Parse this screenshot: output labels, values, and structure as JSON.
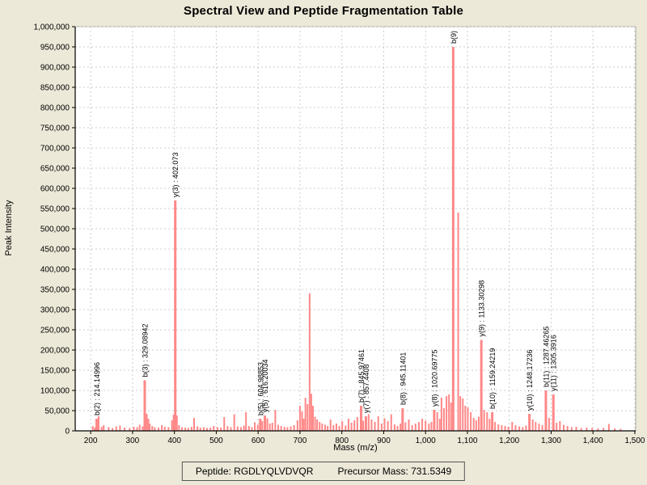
{
  "footer": {
    "peptide_label": "Peptide: RGDLYQLVDVQR",
    "precursor_label": "Precursor Mass: 731.5349"
  },
  "chart_data": {
    "type": "bar",
    "title": "Spectral View and Peptide Fragmentation Table",
    "xlabel": "Mass (m/z)",
    "ylabel": "Peak Intensity",
    "xlim": [
      163,
      1502
    ],
    "ylim": [
      0,
      1000000
    ],
    "x_ticks": [
      200,
      300,
      400,
      500,
      600,
      700,
      800,
      900,
      1000,
      1100,
      1200,
      1300,
      1400,
      1500
    ],
    "y_tick_step": 50000,
    "grid": true,
    "legend": "none",
    "colors": {
      "bar": "#ff8888",
      "grid": "#cccccc",
      "plot_bg": "#ffffff",
      "page_bg": "#ece9d8",
      "axis": "#000000",
      "frame": "#aaaaaa",
      "label_text": "#000000"
    },
    "labeled_peaks": [
      {
        "label": "b(2) : 214.14996",
        "mz": 214.15,
        "intensity": 30000
      },
      {
        "label": "b(3) : 329.08942",
        "mz": 329.09,
        "intensity": 125000
      },
      {
        "label": "y(3) : 402.073",
        "mz": 402.07,
        "intensity": 570000
      },
      {
        "label": "b(5) : 604.98853",
        "mz": 604.99,
        "intensity": 30000
      },
      {
        "label": "y(5) : 616.20034",
        "mz": 616.2,
        "intensity": 38000
      },
      {
        "label": "b(7) : 845.97461",
        "mz": 845.97,
        "intensity": 62000
      },
      {
        "label": "y(7) : 857.4408",
        "mz": 857.44,
        "intensity": 36000
      },
      {
        "label": "b(8) : 945.11401",
        "mz": 945.11,
        "intensity": 56000
      },
      {
        "label": "y(8) : 1020.69775",
        "mz": 1020.7,
        "intensity": 52000
      },
      {
        "label": "b(9)",
        "mz": 1066.0,
        "intensity": 950000
      },
      {
        "label": "y(9) : 1133.30298",
        "mz": 1133.3,
        "intensity": 225000
      },
      {
        "label": "b(10) : 1159.24219",
        "mz": 1159.24,
        "intensity": 46000
      },
      {
        "label": "y(10) : 1248.17236",
        "mz": 1248.17,
        "intensity": 42000
      },
      {
        "label": "b(11) : 1287.46265",
        "mz": 1287.46,
        "intensity": 100000
      },
      {
        "label": "y(11) : 1305.3916",
        "mz": 1305.39,
        "intensity": 90000
      }
    ],
    "unlabeled_peaks": [
      [
        205,
        12000
      ],
      [
        210,
        8000
      ],
      [
        219,
        36000
      ],
      [
        226,
        10000
      ],
      [
        231,
        14000
      ],
      [
        243,
        9000
      ],
      [
        252,
        7000
      ],
      [
        261,
        11000
      ],
      [
        270,
        13000
      ],
      [
        281,
        8000
      ],
      [
        293,
        7000
      ],
      [
        303,
        10000
      ],
      [
        311,
        9000
      ],
      [
        317,
        15000
      ],
      [
        324,
        11000
      ],
      [
        334,
        42000
      ],
      [
        338,
        30000
      ],
      [
        341,
        18000
      ],
      [
        347,
        12000
      ],
      [
        353,
        9000
      ],
      [
        362,
        8000
      ],
      [
        370,
        14000
      ],
      [
        377,
        10000
      ],
      [
        386,
        9000
      ],
      [
        394,
        26000
      ],
      [
        398,
        40000
      ],
      [
        406,
        38000
      ],
      [
        411,
        14000
      ],
      [
        418,
        9000
      ],
      [
        426,
        8000
      ],
      [
        433,
        7000
      ],
      [
        441,
        10000
      ],
      [
        447,
        32000
      ],
      [
        455,
        11000
      ],
      [
        462,
        8000
      ],
      [
        470,
        9000
      ],
      [
        478,
        7000
      ],
      [
        486,
        8000
      ],
      [
        494,
        12000
      ],
      [
        503,
        9000
      ],
      [
        511,
        8000
      ],
      [
        519,
        34000
      ],
      [
        527,
        12000
      ],
      [
        535,
        9000
      ],
      [
        543,
        41000
      ],
      [
        551,
        11000
      ],
      [
        559,
        9000
      ],
      [
        566,
        13000
      ],
      [
        571,
        46000
      ],
      [
        578,
        12000
      ],
      [
        585,
        9000
      ],
      [
        592,
        21000
      ],
      [
        599,
        15000
      ],
      [
        610,
        24000
      ],
      [
        622,
        31000
      ],
      [
        628,
        18000
      ],
      [
        634,
        20000
      ],
      [
        641,
        52000
      ],
      [
        648,
        15000
      ],
      [
        655,
        12000
      ],
      [
        663,
        10000
      ],
      [
        670,
        9000
      ],
      [
        678,
        11000
      ],
      [
        686,
        14000
      ],
      [
        694,
        26000
      ],
      [
        700,
        62000
      ],
      [
        705,
        48000
      ],
      [
        709,
        30000
      ],
      [
        713,
        82000
      ],
      [
        718,
        66000
      ],
      [
        723,
        340000
      ],
      [
        727,
        92000
      ],
      [
        731,
        62000
      ],
      [
        736,
        35000
      ],
      [
        741,
        28000
      ],
      [
        747,
        22000
      ],
      [
        753,
        18000
      ],
      [
        760,
        15000
      ],
      [
        766,
        12000
      ],
      [
        773,
        28000
      ],
      [
        780,
        14000
      ],
      [
        787,
        18000
      ],
      [
        794,
        12000
      ],
      [
        801,
        24000
      ],
      [
        809,
        13000
      ],
      [
        816,
        30000
      ],
      [
        823,
        20000
      ],
      [
        830,
        26000
      ],
      [
        837,
        34000
      ],
      [
        851,
        25000
      ],
      [
        864,
        41000
      ],
      [
        871,
        28000
      ],
      [
        879,
        22000
      ],
      [
        887,
        36000
      ],
      [
        895,
        18000
      ],
      [
        902,
        31000
      ],
      [
        910,
        24000
      ],
      [
        918,
        41000
      ],
      [
        926,
        16000
      ],
      [
        933,
        12000
      ],
      [
        940,
        18000
      ],
      [
        952,
        21000
      ],
      [
        960,
        28000
      ],
      [
        968,
        14000
      ],
      [
        976,
        18000
      ],
      [
        984,
        22000
      ],
      [
        992,
        30000
      ],
      [
        1000,
        25000
      ],
      [
        1008,
        18000
      ],
      [
        1014,
        22000
      ],
      [
        1028,
        46000
      ],
      [
        1034,
        30000
      ],
      [
        1038,
        82000
      ],
      [
        1044,
        56000
      ],
      [
        1050,
        86000
      ],
      [
        1056,
        90000
      ],
      [
        1061,
        70000
      ],
      [
        1078,
        540000
      ],
      [
        1083,
        86000
      ],
      [
        1089,
        80000
      ],
      [
        1095,
        62000
      ],
      [
        1101,
        58000
      ],
      [
        1108,
        46000
      ],
      [
        1115,
        32000
      ],
      [
        1121,
        26000
      ],
      [
        1127,
        35000
      ],
      [
        1140,
        52000
      ],
      [
        1147,
        46000
      ],
      [
        1153,
        30000
      ],
      [
        1166,
        22000
      ],
      [
        1174,
        16000
      ],
      [
        1182,
        14000
      ],
      [
        1190,
        12000
      ],
      [
        1198,
        10000
      ],
      [
        1207,
        22000
      ],
      [
        1215,
        14000
      ],
      [
        1224,
        11000
      ],
      [
        1232,
        9000
      ],
      [
        1240,
        13000
      ],
      [
        1256,
        28000
      ],
      [
        1263,
        22000
      ],
      [
        1271,
        18000
      ],
      [
        1279,
        14000
      ],
      [
        1295,
        32000
      ],
      [
        1313,
        20000
      ],
      [
        1321,
        24000
      ],
      [
        1330,
        15000
      ],
      [
        1339,
        12000
      ],
      [
        1349,
        9000
      ],
      [
        1360,
        10000
      ],
      [
        1372,
        7000
      ],
      [
        1385,
        8000
      ],
      [
        1398,
        7000
      ],
      [
        1412,
        6000
      ],
      [
        1425,
        7000
      ],
      [
        1438,
        17000
      ],
      [
        1452,
        6000
      ],
      [
        1466,
        5000
      ]
    ]
  }
}
